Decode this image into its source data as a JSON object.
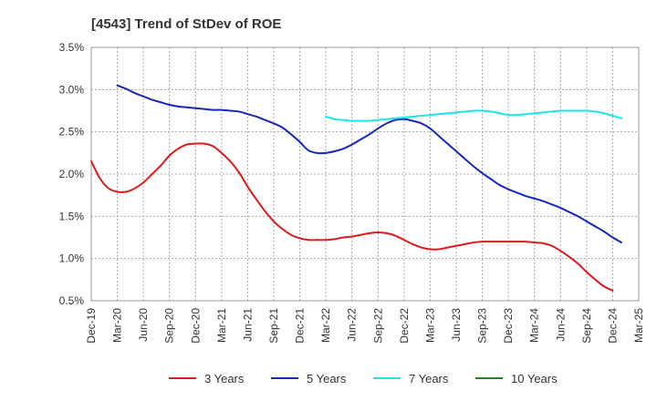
{
  "chart_data": {
    "type": "line",
    "title": "[4543]  Trend of StDev of ROE",
    "xlabel": "",
    "ylabel": "",
    "ylim": [
      0.5,
      3.5
    ],
    "y_ticks": [
      "0.5%",
      "1.0%",
      "1.5%",
      "2.0%",
      "2.5%",
      "3.0%",
      "3.5%"
    ],
    "y_tick_values": [
      0.5,
      1.0,
      1.5,
      2.0,
      2.5,
      3.0,
      3.5
    ],
    "x_ticks": [
      "Dec-19",
      "Mar-20",
      "Jun-20",
      "Sep-20",
      "Dec-20",
      "Mar-21",
      "Jun-21",
      "Sep-21",
      "Dec-21",
      "Mar-22",
      "Jun-22",
      "Sep-22",
      "Dec-22",
      "Mar-23",
      "Jun-23",
      "Sep-23",
      "Dec-23",
      "Mar-24",
      "Jun-24",
      "Sep-24",
      "Dec-24",
      "Mar-25"
    ],
    "x_unit": "month",
    "x_start": "2019-12",
    "x_end": "2025-03",
    "grid": true,
    "legend_position": "bottom",
    "series": [
      {
        "name": "3 Years",
        "color": "#e0191c",
        "points": [
          [
            "2019-12",
            2.15
          ],
          [
            "2020-01",
            1.95
          ],
          [
            "2020-02",
            1.83
          ],
          [
            "2020-03",
            1.79
          ],
          [
            "2020-04",
            1.79
          ],
          [
            "2020-05",
            1.83
          ],
          [
            "2020-06",
            1.9
          ],
          [
            "2020-07",
            2.0
          ],
          [
            "2020-08",
            2.1
          ],
          [
            "2020-09",
            2.22
          ],
          [
            "2020-10",
            2.3
          ],
          [
            "2020-11",
            2.35
          ],
          [
            "2020-12",
            2.36
          ],
          [
            "2021-01",
            2.36
          ],
          [
            "2021-02",
            2.33
          ],
          [
            "2021-03",
            2.25
          ],
          [
            "2021-04",
            2.15
          ],
          [
            "2021-05",
            2.02
          ],
          [
            "2021-06",
            1.85
          ],
          [
            "2021-07",
            1.7
          ],
          [
            "2021-08",
            1.56
          ],
          [
            "2021-09",
            1.44
          ],
          [
            "2021-10",
            1.35
          ],
          [
            "2021-11",
            1.28
          ],
          [
            "2021-12",
            1.24
          ],
          [
            "2022-01",
            1.22
          ],
          [
            "2022-02",
            1.22
          ],
          [
            "2022-03",
            1.22
          ],
          [
            "2022-04",
            1.23
          ],
          [
            "2022-05",
            1.25
          ],
          [
            "2022-06",
            1.26
          ],
          [
            "2022-07",
            1.28
          ],
          [
            "2022-08",
            1.3
          ],
          [
            "2022-09",
            1.31
          ],
          [
            "2022-10",
            1.3
          ],
          [
            "2022-11",
            1.27
          ],
          [
            "2022-12",
            1.22
          ],
          [
            "2023-01",
            1.17
          ],
          [
            "2023-02",
            1.13
          ],
          [
            "2023-03",
            1.11
          ],
          [
            "2023-04",
            1.11
          ],
          [
            "2023-05",
            1.13
          ],
          [
            "2023-06",
            1.15
          ],
          [
            "2023-07",
            1.17
          ],
          [
            "2023-08",
            1.19
          ],
          [
            "2023-09",
            1.2
          ],
          [
            "2023-10",
            1.2
          ],
          [
            "2023-11",
            1.2
          ],
          [
            "2023-12",
            1.2
          ],
          [
            "2024-01",
            1.2
          ],
          [
            "2024-02",
            1.2
          ],
          [
            "2024-03",
            1.19
          ],
          [
            "2024-04",
            1.18
          ],
          [
            "2024-05",
            1.15
          ],
          [
            "2024-06",
            1.09
          ],
          [
            "2024-07",
            1.02
          ],
          [
            "2024-08",
            0.94
          ],
          [
            "2024-09",
            0.84
          ],
          [
            "2024-10",
            0.75
          ],
          [
            "2024-11",
            0.67
          ],
          [
            "2024-12",
            0.62
          ]
        ]
      },
      {
        "name": "5 Years",
        "color": "#1527bd",
        "points": [
          [
            "2020-03",
            3.05
          ],
          [
            "2020-04",
            3.01
          ],
          [
            "2020-05",
            2.96
          ],
          [
            "2020-06",
            2.92
          ],
          [
            "2020-07",
            2.88
          ],
          [
            "2020-08",
            2.85
          ],
          [
            "2020-09",
            2.82
          ],
          [
            "2020-10",
            2.8
          ],
          [
            "2020-11",
            2.79
          ],
          [
            "2020-12",
            2.78
          ],
          [
            "2021-01",
            2.77
          ],
          [
            "2021-02",
            2.76
          ],
          [
            "2021-03",
            2.76
          ],
          [
            "2021-04",
            2.75
          ],
          [
            "2021-05",
            2.74
          ],
          [
            "2021-06",
            2.71
          ],
          [
            "2021-07",
            2.68
          ],
          [
            "2021-08",
            2.64
          ],
          [
            "2021-09",
            2.6
          ],
          [
            "2021-10",
            2.55
          ],
          [
            "2021-11",
            2.47
          ],
          [
            "2021-12",
            2.38
          ],
          [
            "2022-01",
            2.28
          ],
          [
            "2022-02",
            2.25
          ],
          [
            "2022-03",
            2.25
          ],
          [
            "2022-04",
            2.27
          ],
          [
            "2022-05",
            2.3
          ],
          [
            "2022-06",
            2.35
          ],
          [
            "2022-07",
            2.41
          ],
          [
            "2022-08",
            2.47
          ],
          [
            "2022-09",
            2.54
          ],
          [
            "2022-10",
            2.6
          ],
          [
            "2022-11",
            2.64
          ],
          [
            "2022-12",
            2.65
          ],
          [
            "2023-01",
            2.63
          ],
          [
            "2023-02",
            2.6
          ],
          [
            "2023-03",
            2.54
          ],
          [
            "2023-04",
            2.45
          ],
          [
            "2023-05",
            2.36
          ],
          [
            "2023-06",
            2.27
          ],
          [
            "2023-07",
            2.18
          ],
          [
            "2023-08",
            2.09
          ],
          [
            "2023-09",
            2.01
          ],
          [
            "2023-10",
            1.94
          ],
          [
            "2023-11",
            1.87
          ],
          [
            "2023-12",
            1.82
          ],
          [
            "2024-01",
            1.78
          ],
          [
            "2024-02",
            1.74
          ],
          [
            "2024-03",
            1.71
          ],
          [
            "2024-04",
            1.68
          ],
          [
            "2024-05",
            1.64
          ],
          [
            "2024-06",
            1.6
          ],
          [
            "2024-07",
            1.55
          ],
          [
            "2024-08",
            1.5
          ],
          [
            "2024-09",
            1.44
          ],
          [
            "2024-10",
            1.38
          ],
          [
            "2024-11",
            1.32
          ],
          [
            "2024-12",
            1.25
          ],
          [
            "2025-01",
            1.19
          ]
        ]
      },
      {
        "name": "7 Years",
        "color": "#19e6e6",
        "points": [
          [
            "2022-03",
            2.68
          ],
          [
            "2022-04",
            2.65
          ],
          [
            "2022-05",
            2.64
          ],
          [
            "2022-06",
            2.63
          ],
          [
            "2022-07",
            2.63
          ],
          [
            "2022-08",
            2.63
          ],
          [
            "2022-09",
            2.64
          ],
          [
            "2022-10",
            2.65
          ],
          [
            "2022-11",
            2.66
          ],
          [
            "2022-12",
            2.67
          ],
          [
            "2023-01",
            2.68
          ],
          [
            "2023-02",
            2.69
          ],
          [
            "2023-03",
            2.7
          ],
          [
            "2023-04",
            2.71
          ],
          [
            "2023-05",
            2.72
          ],
          [
            "2023-06",
            2.73
          ],
          [
            "2023-07",
            2.74
          ],
          [
            "2023-08",
            2.75
          ],
          [
            "2023-09",
            2.75
          ],
          [
            "2023-10",
            2.74
          ],
          [
            "2023-11",
            2.72
          ],
          [
            "2023-12",
            2.7
          ],
          [
            "2024-01",
            2.7
          ],
          [
            "2024-02",
            2.71
          ],
          [
            "2024-03",
            2.72
          ],
          [
            "2024-04",
            2.73
          ],
          [
            "2024-05",
            2.74
          ],
          [
            "2024-06",
            2.75
          ],
          [
            "2024-07",
            2.75
          ],
          [
            "2024-08",
            2.75
          ],
          [
            "2024-09",
            2.75
          ],
          [
            "2024-10",
            2.74
          ],
          [
            "2024-11",
            2.72
          ],
          [
            "2024-12",
            2.69
          ],
          [
            "2025-01",
            2.66
          ]
        ]
      },
      {
        "name": "10 Years",
        "color": "#1a8a1a",
        "points": []
      }
    ]
  }
}
